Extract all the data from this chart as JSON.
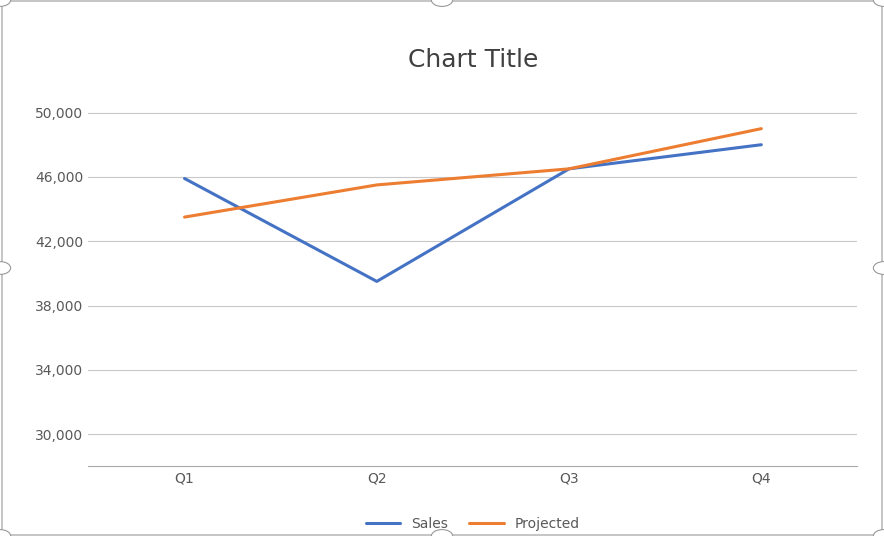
{
  "title": "Chart Title",
  "categories": [
    "Q1",
    "Q2",
    "Q3",
    "Q4"
  ],
  "series": [
    {
      "name": "Sales",
      "values": [
        45900,
        39500,
        46500,
        48000
      ],
      "color": "#4472C4",
      "linewidth": 2.2
    },
    {
      "name": "Projected",
      "values": [
        43500,
        45500,
        46500,
        49000
      ],
      "color": "#ED7D31",
      "linewidth": 2.2
    }
  ],
  "ylim": [
    28000,
    52000
  ],
  "yticks": [
    30000,
    34000,
    38000,
    42000,
    46000,
    50000
  ],
  "background_color": "#FFFFFF",
  "plot_area_color": "#FFFFFF",
  "grid_color": "#C8C8C8",
  "outer_border_color": "#BBBBBB",
  "title_fontsize": 18,
  "tick_fontsize": 10,
  "legend_fontsize": 10,
  "title_color": "#404040",
  "tick_color": "#595959"
}
